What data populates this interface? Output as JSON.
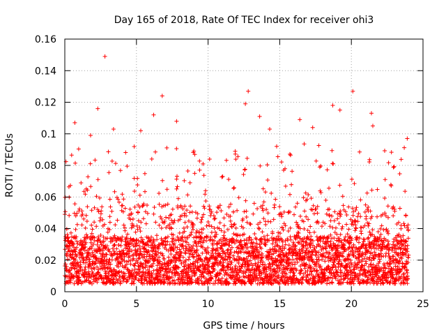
{
  "chart_data": {
    "type": "scatter",
    "title": "Day 165 of 2018, Rate Of TEC Index for receiver ohi3",
    "xlabel": "GPS time / hours",
    "ylabel": "ROTI / TECUs",
    "xlim": [
      0,
      25
    ],
    "ylim": [
      0,
      0.16
    ],
    "xticks": [
      0,
      5,
      10,
      15,
      20,
      25
    ],
    "xtick_labels": [
      "0",
      "5",
      "10",
      "15",
      "20",
      "25"
    ],
    "yticks": [
      0,
      0.02,
      0.04,
      0.06,
      0.08,
      0.1,
      0.12,
      0.14,
      0.16
    ],
    "ytick_labels": [
      "0",
      "0.02",
      "0.04",
      "0.06",
      "0.08",
      "0.1",
      "0.12",
      "0.14",
      "0.16"
    ],
    "grid": true,
    "series": [
      {
        "name": "ROTI",
        "marker": "+",
        "color": "#ff0000",
        "x_range": [
          0,
          24
        ],
        "baseline_band": [
          0.005,
          0.035
        ],
        "outliers": [
          {
            "x": 2.8,
            "y": 0.149
          },
          {
            "x": 12.8,
            "y": 0.127
          },
          {
            "x": 20.1,
            "y": 0.127
          },
          {
            "x": 6.8,
            "y": 0.124
          },
          {
            "x": 18.7,
            "y": 0.118
          },
          {
            "x": 2.3,
            "y": 0.116
          },
          {
            "x": 12.6,
            "y": 0.119
          },
          {
            "x": 19.2,
            "y": 0.115
          },
          {
            "x": 6.2,
            "y": 0.112
          },
          {
            "x": 21.4,
            "y": 0.113
          },
          {
            "x": 13.6,
            "y": 0.111
          },
          {
            "x": 0.7,
            "y": 0.107
          },
          {
            "x": 16.4,
            "y": 0.109
          },
          {
            "x": 7.8,
            "y": 0.108
          },
          {
            "x": 3.4,
            "y": 0.103
          },
          {
            "x": 5.3,
            "y": 0.102
          },
          {
            "x": 14.3,
            "y": 0.103
          },
          {
            "x": 17.3,
            "y": 0.104
          },
          {
            "x": 21.5,
            "y": 0.105
          },
          {
            "x": 1.8,
            "y": 0.099
          },
          {
            "x": 23.9,
            "y": 0.097
          }
        ]
      }
    ]
  }
}
